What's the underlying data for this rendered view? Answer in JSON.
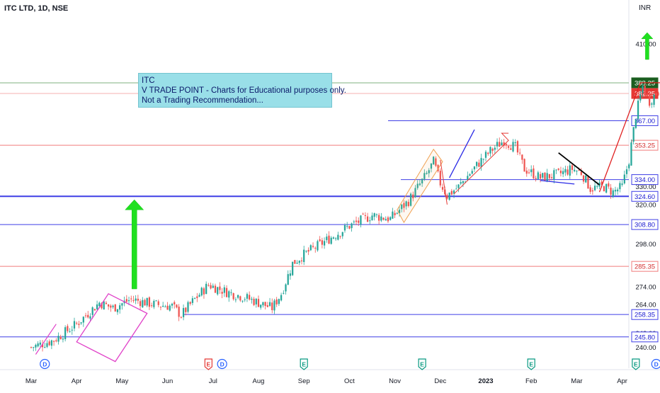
{
  "header": {
    "title": "ITC LTD, 1D, NSE",
    "currency": "INR"
  },
  "annotation": {
    "line1": "ITC",
    "line2": "V TRADE POINT - Charts for Educational purposes only.",
    "line3": "Not a Trading Recommendation..."
  },
  "colors": {
    "bull": "#26a69a",
    "bear": "#ef5350",
    "support": "#3f3fe6",
    "resistance": "#f07c7c",
    "arrow": "#20e020",
    "channel_magenta": "#e040c8",
    "channel_orange": "#f0a050",
    "trend_blue": "#2a2ae6",
    "trend_black": "#000000",
    "trend_red": "#e02020"
  },
  "chart_data": {
    "type": "candlestick",
    "title": "ITC LTD, 1D, NSE",
    "y_unit": "INR",
    "ylim": [
      235,
      418
    ],
    "y_ticks": [
      "410.00",
      "330.00",
      "320.00",
      "298.00",
      "274.00",
      "264.00",
      "248.00",
      "240.00"
    ],
    "x_ticks": [
      "Mar",
      "Apr",
      "May",
      "Jun",
      "Jul",
      "Aug",
      "Sep",
      "Oct",
      "Nov",
      "Dec",
      "2023",
      "Feb",
      "Mar",
      "Apr"
    ],
    "price_levels": [
      {
        "label": "388.25",
        "value": 388.25,
        "kind": "top",
        "color": "#1b5e20"
      },
      {
        "label": "382.25",
        "value": 382.25,
        "kind": "last",
        "color": "#e53935"
      },
      {
        "label": "367.00",
        "value": 367.0,
        "kind": "support"
      },
      {
        "label": "353.25",
        "value": 353.25,
        "kind": "resistance"
      },
      {
        "label": "334.00",
        "value": 334.0,
        "kind": "support"
      },
      {
        "label": "324.60",
        "value": 324.6,
        "kind": "support"
      },
      {
        "label": "308.80",
        "value": 308.8,
        "kind": "support"
      },
      {
        "label": "285.35",
        "value": 285.35,
        "kind": "resistance"
      },
      {
        "label": "258.35",
        "value": 258.35,
        "kind": "support"
      },
      {
        "label": "245.80",
        "value": 245.8,
        "kind": "support"
      }
    ],
    "event_markers": [
      {
        "label": "D",
        "month_index": 0.3,
        "color": "#2962ff"
      },
      {
        "label": "E",
        "month_index": 3.9,
        "color": "#e53935"
      },
      {
        "label": "D",
        "month_index": 4.2,
        "color": "#2962ff"
      },
      {
        "label": "E",
        "month_index": 6.0,
        "color": "#089981"
      },
      {
        "label": "E",
        "month_index": 8.6,
        "color": "#089981"
      },
      {
        "label": "E",
        "month_index": 11.0,
        "color": "#089981"
      },
      {
        "label": "E",
        "month_index": 13.3,
        "color": "#089981"
      },
      {
        "label": "D",
        "month_index": 13.75,
        "color": "#2962ff"
      },
      {
        "label": "⚡",
        "month_index": 14.0,
        "color": "#9c27b0"
      }
    ],
    "anchors": [
      {
        "month_index": 0.0,
        "close": 240
      },
      {
        "month_index": 0.5,
        "close": 244
      },
      {
        "month_index": 1.0,
        "close": 253
      },
      {
        "month_index": 1.5,
        "close": 265
      },
      {
        "month_index": 1.8,
        "close": 262
      },
      {
        "month_index": 2.2,
        "close": 267
      },
      {
        "month_index": 2.7,
        "close": 264
      },
      {
        "month_index": 3.1,
        "close": 263
      },
      {
        "month_index": 3.3,
        "close": 258
      },
      {
        "month_index": 3.6,
        "close": 267
      },
      {
        "month_index": 3.9,
        "close": 275
      },
      {
        "month_index": 4.3,
        "close": 271
      },
      {
        "month_index": 4.7,
        "close": 268
      },
      {
        "month_index": 5.0,
        "close": 265
      },
      {
        "month_index": 5.3,
        "close": 262
      },
      {
        "month_index": 5.5,
        "close": 270
      },
      {
        "month_index": 5.75,
        "close": 287
      },
      {
        "month_index": 6.0,
        "close": 292
      },
      {
        "month_index": 6.5,
        "close": 300
      },
      {
        "month_index": 7.0,
        "close": 308
      },
      {
        "month_index": 7.5,
        "close": 314
      },
      {
        "month_index": 7.9,
        "close": 312
      },
      {
        "month_index": 8.3,
        "close": 322
      },
      {
        "month_index": 8.7,
        "close": 337
      },
      {
        "month_index": 8.85,
        "close": 344
      },
      {
        "month_index": 9.0,
        "close": 332
      },
      {
        "month_index": 9.15,
        "close": 325
      },
      {
        "month_index": 9.4,
        "close": 330
      },
      {
        "month_index": 9.8,
        "close": 342
      },
      {
        "month_index": 10.1,
        "close": 350
      },
      {
        "month_index": 10.4,
        "close": 356
      },
      {
        "month_index": 10.65,
        "close": 352
      },
      {
        "month_index": 10.85,
        "close": 340
      },
      {
        "month_index": 11.2,
        "close": 335
      },
      {
        "month_index": 11.6,
        "close": 337
      },
      {
        "month_index": 11.9,
        "close": 340
      },
      {
        "month_index": 12.1,
        "close": 338
      },
      {
        "month_index": 12.3,
        "close": 329
      },
      {
        "month_index": 12.6,
        "close": 330
      },
      {
        "month_index": 12.8,
        "close": 327
      },
      {
        "month_index": 13.0,
        "close": 330
      },
      {
        "month_index": 13.15,
        "close": 345
      },
      {
        "month_index": 13.3,
        "close": 370
      },
      {
        "month_index": 13.45,
        "close": 386
      },
      {
        "month_index": 13.6,
        "close": 378
      },
      {
        "month_index": 13.8,
        "close": 384
      },
      {
        "month_index": 14.0,
        "close": 382
      }
    ]
  }
}
